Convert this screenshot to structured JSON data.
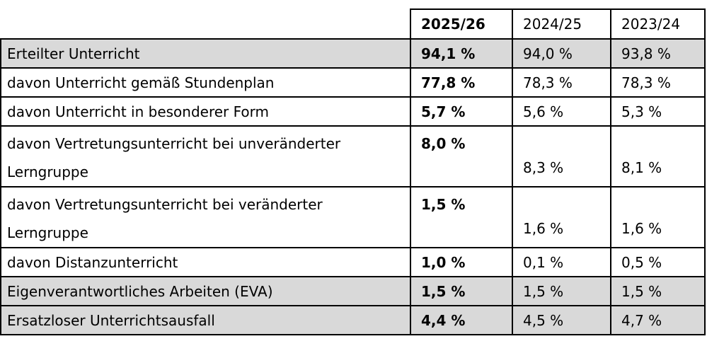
{
  "table": {
    "columns": [
      "",
      "2025/26",
      "2024/25",
      "2023/24"
    ],
    "rows": [
      {
        "label": "Erteilter Unterricht",
        "values": [
          "94,1 %",
          "94,0 %",
          "93,8 %"
        ]
      },
      {
        "label": "davon Unterricht gemäß Stundenplan",
        "values": [
          "77,8 %",
          "78,3 %",
          "78,3 %"
        ]
      },
      {
        "label": "davon Unterricht in besonderer Form",
        "values": [
          "5,7 %",
          "5,6 %",
          "5,3 %"
        ]
      },
      {
        "label": "davon Vertretungsunterricht bei unveränderter\nLerngruppe",
        "values": [
          "8,0 %",
          "8,3 %",
          "8,1 %"
        ]
      },
      {
        "label": "davon Vertretungsunterricht bei veränderter\nLerngruppe",
        "values": [
          "1,5 %",
          "1,6 %",
          "1,6 %"
        ]
      },
      {
        "label": "davon Distanzunterricht",
        "values": [
          "1,0 %",
          "0,1 %",
          "0,5 %"
        ]
      },
      {
        "label": "Eigenverantwortliches Arbeiten (EVA)",
        "values": [
          "1,5 %",
          "1,5 %",
          "1,5 %"
        ]
      },
      {
        "label": "Ersatzloser Unterrichtsausfall",
        "values": [
          "4,4 %",
          "4,5 %",
          "4,7 %"
        ]
      }
    ],
    "colors": {
      "row_highlight": "#d9d9d9",
      "border": "#000000",
      "text": "#000000",
      "background": "#ffffff"
    }
  },
  "chart_data": {
    "type": "table",
    "columns": [
      "2025/26",
      "2024/25",
      "2023/24"
    ],
    "unit": "percent",
    "rows": [
      {
        "label": "Erteilter Unterricht",
        "values": [
          94.1,
          94.0,
          93.8
        ]
      },
      {
        "label": "davon Unterricht gemäß Stundenplan",
        "values": [
          77.8,
          78.3,
          78.3
        ]
      },
      {
        "label": "davon Unterricht in besonderer Form",
        "values": [
          5.7,
          5.6,
          5.3
        ]
      },
      {
        "label": "davon Vertretungsunterricht bei unveränderter Lerngruppe",
        "values": [
          8.0,
          8.3,
          8.1
        ]
      },
      {
        "label": "davon Vertretungsunterricht bei veränderter Lerngruppe",
        "values": [
          1.5,
          1.6,
          1.6
        ]
      },
      {
        "label": "davon Distanzunterricht",
        "values": [
          1.0,
          0.1,
          0.5
        ]
      },
      {
        "label": "Eigenverantwortliches Arbeiten (EVA)",
        "values": [
          1.5,
          1.5,
          1.5
        ]
      },
      {
        "label": "Ersatzloser Unterrichtsausfall",
        "values": [
          4.4,
          4.5,
          4.7
        ]
      }
    ],
    "layout_hints": {
      "highlighted_rows": [
        0,
        6,
        7
      ],
      "bold_column": "2025/26",
      "decimal_separator": ","
    }
  }
}
